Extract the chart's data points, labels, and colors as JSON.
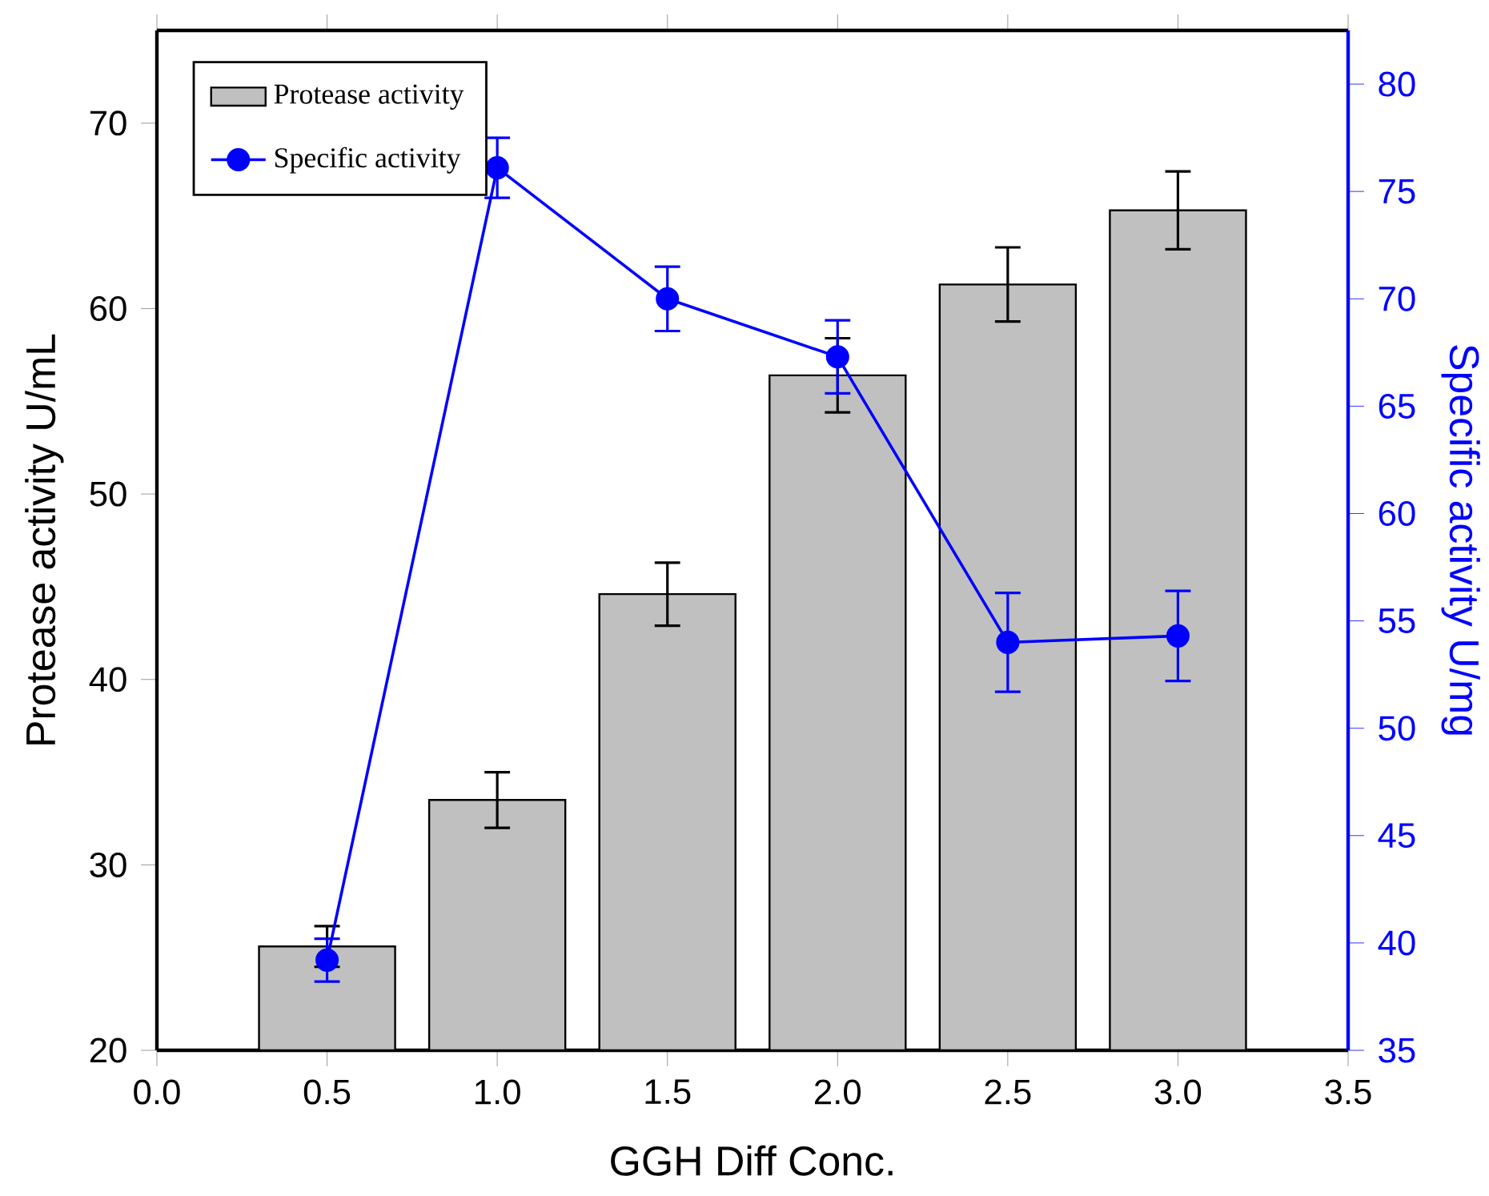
{
  "chart_data": {
    "type": "bar",
    "xlabel": "GGH Diff Conc.",
    "ylabel": "Protease activity U/mL",
    "y2label": "Specific activity U/mg",
    "x": [
      0.5,
      1.0,
      1.5,
      2.0,
      2.5,
      3.0
    ],
    "series": [
      {
        "name": "Protease activity",
        "color": "#c0c0c0",
        "values": [
          25.6,
          33.5,
          44.6,
          56.4,
          61.3,
          65.3
        ],
        "errors": [
          1.1,
          1.5,
          1.7,
          2.0,
          2.0,
          2.1
        ]
      },
      {
        "name": "Specific activity",
        "type": "line",
        "axis": "y2",
        "color": "#0000ff",
        "values": [
          39.2,
          76.1,
          70.0,
          67.3,
          54.0,
          54.3
        ],
        "errors": [
          1.0,
          1.4,
          1.5,
          1.7,
          2.3,
          2.1
        ]
      }
    ],
    "xlim": [
      0,
      3.5
    ],
    "xticks": [
      {
        "value": 0,
        "label": "0.0"
      },
      {
        "value": 0.5,
        "label": "0.5"
      },
      {
        "value": 1.0,
        "label": "1.0"
      },
      {
        "value": 1.5,
        "label": "1.5"
      },
      {
        "value": 2.0,
        "label": "2.0"
      },
      {
        "value": 2.5,
        "label": "2.5"
      },
      {
        "value": 3.0,
        "label": "3.0"
      },
      {
        "value": 3.5,
        "label": "3.5"
      }
    ],
    "ylim": [
      20,
      75
    ],
    "yticks": [
      20,
      30,
      40,
      50,
      60,
      70
    ],
    "y2lim": [
      35,
      82.5
    ],
    "y2ticks": [
      35,
      40,
      45,
      50,
      55,
      60,
      65,
      70,
      75,
      80
    ],
    "legend": "top left",
    "marker": "circle",
    "grid": false
  }
}
